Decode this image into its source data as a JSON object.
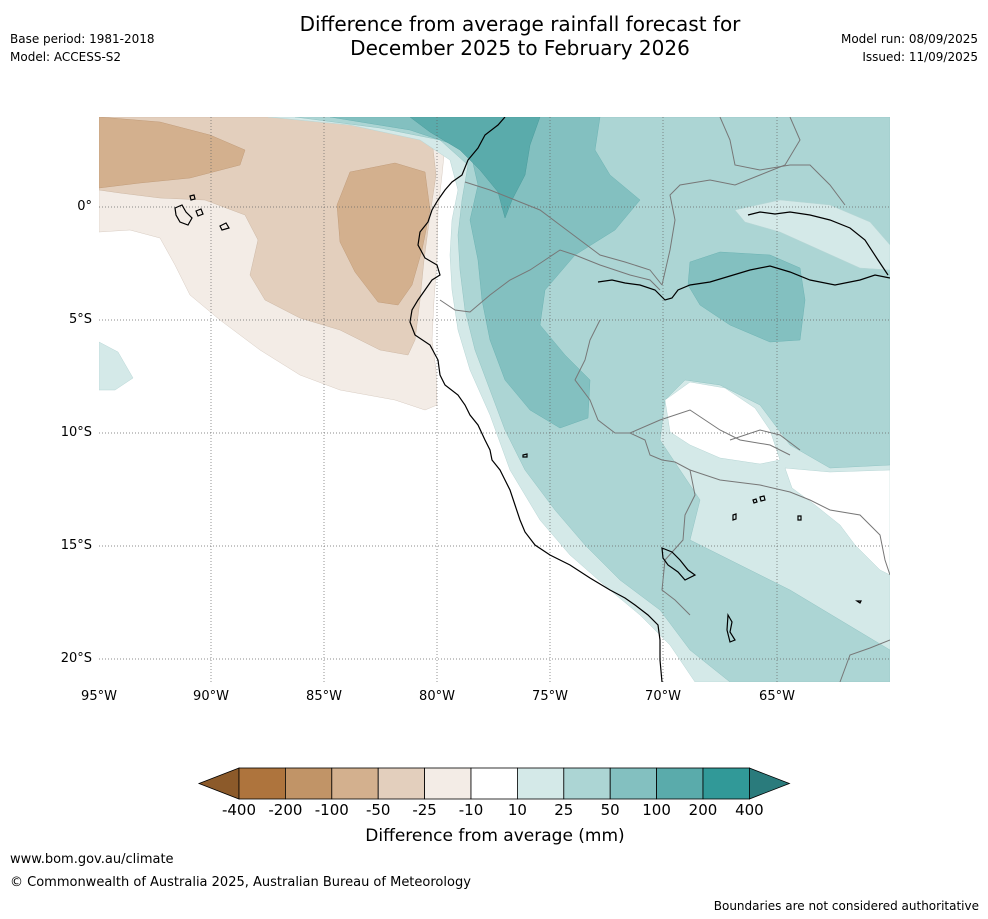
{
  "title_line1": "Difference from average rainfall forecast for",
  "title_line2": "December 2025 to February 2026",
  "base_period": "Base period: 1981-2018",
  "model": "Model: ACCESS-S2",
  "model_run": "Model run: 08/09/2025",
  "issued": "Issued: 11/09/2025",
  "lat_labels": [
    "0°",
    "5°S",
    "10°S",
    "15°S",
    "20°S"
  ],
  "lon_labels": [
    "95°W",
    "90°W",
    "85°W",
    "80°W",
    "75°W",
    "70°W",
    "65°W"
  ],
  "colorbar": {
    "title": "Difference from average (mm)",
    "ticks": [
      "-400",
      "-200",
      "-100",
      "-50",
      "-25",
      "-10",
      "10",
      "25",
      "50",
      "100",
      "200",
      "400"
    ],
    "colors": [
      "#8c5a2a",
      "#ae743d",
      "#c19467",
      "#d3b08e",
      "#e3cfbd",
      "#f3ece6",
      "#ffffff",
      "#d4e9e8",
      "#acd5d4",
      "#83c0c0",
      "#5aabab",
      "#319998",
      "#2a7b7c"
    ]
  },
  "website": "www.bom.gov.au/climate",
  "copyright": "© Commonwealth of Australia 2025, Australian Bureau of Meteorology",
  "disclaimer": "Boundaries are not considered authoritative"
}
